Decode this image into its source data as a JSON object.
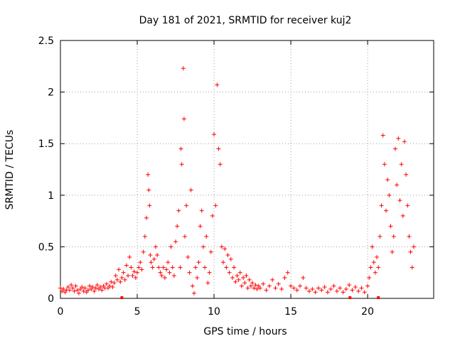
{
  "chart_data": {
    "type": "scatter",
    "title": "Day 181 of 2021, SRMTID for receiver kuj2",
    "xlabel": "GPS time / hours",
    "ylabel": "SRMTID / TECUs",
    "xlim": [
      0,
      24.3
    ],
    "ylim": [
      0,
      2.5
    ],
    "xticks": [
      0,
      5,
      10,
      15,
      20
    ],
    "yticks": [
      0,
      0.5,
      1,
      1.5,
      2,
      2.5
    ],
    "xtick_labels": [
      "0",
      "5",
      "10",
      "15",
      "20"
    ],
    "ytick_labels": [
      "0",
      "0.5",
      "1",
      "1.5",
      "2",
      "2.5"
    ],
    "grid": true,
    "marker": "+",
    "color": "#ff0000",
    "series": [
      {
        "name": "SRMTID",
        "points": [
          [
            0.0,
            0.1
          ],
          [
            0.1,
            0.07
          ],
          [
            0.2,
            0.09
          ],
          [
            0.3,
            0.06
          ],
          [
            0.4,
            0.08
          ],
          [
            0.5,
            0.11
          ],
          [
            0.6,
            0.08
          ],
          [
            0.7,
            0.13
          ],
          [
            0.8,
            0.1
          ],
          [
            0.9,
            0.07
          ],
          [
            1.0,
            0.12
          ],
          [
            1.1,
            0.08
          ],
          [
            1.2,
            0.05
          ],
          [
            1.3,
            0.09
          ],
          [
            1.4,
            0.11
          ],
          [
            1.5,
            0.07
          ],
          [
            1.6,
            0.1
          ],
          [
            1.7,
            0.06
          ],
          [
            1.8,
            0.08
          ],
          [
            1.9,
            0.12
          ],
          [
            2.0,
            0.09
          ],
          [
            2.1,
            0.11
          ],
          [
            2.2,
            0.07
          ],
          [
            2.3,
            0.1
          ],
          [
            2.4,
            0.13
          ],
          [
            2.5,
            0.09
          ],
          [
            2.6,
            0.11
          ],
          [
            2.7,
            0.08
          ],
          [
            2.8,
            0.12
          ],
          [
            2.9,
            0.1
          ],
          [
            3.0,
            0.14
          ],
          [
            3.1,
            0.1
          ],
          [
            3.2,
            0.12
          ],
          [
            3.3,
            0.16
          ],
          [
            3.4,
            0.11
          ],
          [
            3.5,
            0.15
          ],
          [
            3.6,
            0.22
          ],
          [
            3.7,
            0.18
          ],
          [
            3.8,
            0.28
          ],
          [
            3.9,
            0.16
          ],
          [
            4.0,
            0.2
          ],
          [
            4.1,
            0.25
          ],
          [
            4.2,
            0.18
          ],
          [
            4.3,
            0.32
          ],
          [
            4.4,
            0.22
          ],
          [
            4.5,
            0.4
          ],
          [
            4.6,
            0.3
          ],
          [
            4.7,
            0.22
          ],
          [
            4.8,
            0.26
          ],
          [
            4.9,
            0.2
          ],
          [
            5.0,
            0.25
          ],
          [
            5.1,
            0.3
          ],
          [
            5.2,
            0.35
          ],
          [
            5.3,
            0.28
          ],
          [
            5.4,
            0.45
          ],
          [
            5.5,
            0.6
          ],
          [
            5.6,
            0.78
          ],
          [
            5.7,
            1.2
          ],
          [
            5.75,
            1.05
          ],
          [
            5.8,
            0.9
          ],
          [
            5.85,
            0.42
          ],
          [
            5.9,
            0.35
          ],
          [
            6.0,
            0.3
          ],
          [
            6.1,
            0.38
          ],
          [
            6.2,
            0.5
          ],
          [
            6.3,
            0.42
          ],
          [
            6.4,
            0.3
          ],
          [
            6.5,
            0.25
          ],
          [
            6.6,
            0.22
          ],
          [
            6.7,
            0.3
          ],
          [
            6.8,
            0.2
          ],
          [
            6.9,
            0.28
          ],
          [
            7.0,
            0.35
          ],
          [
            7.1,
            0.25
          ],
          [
            7.2,
            0.5
          ],
          [
            7.3,
            0.3
          ],
          [
            7.4,
            0.22
          ],
          [
            7.5,
            0.55
          ],
          [
            7.6,
            0.7
          ],
          [
            7.7,
            0.85
          ],
          [
            7.8,
            0.3
          ],
          [
            7.85,
            1.45
          ],
          [
            7.9,
            1.3
          ],
          [
            8.0,
            2.23
          ],
          [
            8.05,
            1.74
          ],
          [
            8.1,
            0.6
          ],
          [
            8.2,
            0.9
          ],
          [
            8.3,
            0.4
          ],
          [
            8.4,
            0.25
          ],
          [
            8.5,
            1.05
          ],
          [
            8.6,
            0.12
          ],
          [
            8.7,
            0.05
          ],
          [
            8.8,
            0.3
          ],
          [
            8.9,
            0.2
          ],
          [
            9.0,
            0.35
          ],
          [
            9.1,
            0.7
          ],
          [
            9.2,
            0.85
          ],
          [
            9.3,
            0.5
          ],
          [
            9.4,
            0.3
          ],
          [
            9.5,
            0.6
          ],
          [
            9.6,
            0.15
          ],
          [
            9.7,
            0.25
          ],
          [
            9.8,
            0.45
          ],
          [
            9.9,
            0.8
          ],
          [
            10.0,
            1.59
          ],
          [
            10.1,
            0.9
          ],
          [
            10.2,
            2.07
          ],
          [
            10.3,
            1.45
          ],
          [
            10.4,
            1.3
          ],
          [
            10.5,
            0.5
          ],
          [
            10.6,
            0.35
          ],
          [
            10.7,
            0.48
          ],
          [
            10.8,
            0.3
          ],
          [
            10.9,
            0.42
          ],
          [
            11.0,
            0.25
          ],
          [
            11.1,
            0.38
          ],
          [
            11.2,
            0.2
          ],
          [
            11.3,
            0.3
          ],
          [
            11.4,
            0.16
          ],
          [
            11.5,
            0.22
          ],
          [
            11.6,
            0.18
          ],
          [
            11.7,
            0.25
          ],
          [
            11.8,
            0.12
          ],
          [
            11.9,
            0.2
          ],
          [
            12.0,
            0.15
          ],
          [
            12.1,
            0.22
          ],
          [
            12.2,
            0.1
          ],
          [
            12.3,
            0.18
          ],
          [
            12.4,
            0.12
          ],
          [
            12.5,
            0.15
          ],
          [
            12.6,
            0.1
          ],
          [
            12.7,
            0.13
          ],
          [
            12.8,
            0.09
          ],
          [
            12.9,
            0.12
          ],
          [
            13.0,
            0.1
          ],
          [
            13.2,
            0.14
          ],
          [
            13.4,
            0.08
          ],
          [
            13.6,
            0.12
          ],
          [
            13.8,
            0.18
          ],
          [
            14.0,
            0.1
          ],
          [
            14.2,
            0.14
          ],
          [
            14.4,
            0.09
          ],
          [
            14.6,
            0.2
          ],
          [
            14.8,
            0.25
          ],
          [
            15.0,
            0.12
          ],
          [
            15.2,
            0.1
          ],
          [
            15.4,
            0.08
          ],
          [
            15.6,
            0.12
          ],
          [
            15.8,
            0.2
          ],
          [
            16.0,
            0.1
          ],
          [
            16.2,
            0.07
          ],
          [
            16.4,
            0.09
          ],
          [
            16.6,
            0.06
          ],
          [
            16.8,
            0.1
          ],
          [
            17.0,
            0.08
          ],
          [
            17.2,
            0.11
          ],
          [
            17.4,
            0.06
          ],
          [
            17.6,
            0.09
          ],
          [
            17.8,
            0.12
          ],
          [
            18.0,
            0.07
          ],
          [
            18.2,
            0.1
          ],
          [
            18.4,
            0.06
          ],
          [
            18.6,
            0.09
          ],
          [
            18.8,
            0.13
          ],
          [
            19.0,
            0.08
          ],
          [
            19.2,
            0.11
          ],
          [
            19.4,
            0.07
          ],
          [
            19.6,
            0.1
          ],
          [
            19.8,
            0.06
          ],
          [
            20.0,
            0.12
          ],
          [
            20.1,
            0.2
          ],
          [
            20.2,
            0.3
          ],
          [
            20.3,
            0.5
          ],
          [
            20.4,
            0.35
          ],
          [
            20.5,
            0.25
          ],
          [
            20.6,
            0.4
          ],
          [
            20.7,
            0.3
          ],
          [
            20.8,
            0.6
          ],
          [
            20.9,
            0.9
          ],
          [
            21.0,
            1.58
          ],
          [
            21.1,
            1.3
          ],
          [
            21.2,
            0.85
          ],
          [
            21.3,
            1.15
          ],
          [
            21.4,
            1.0
          ],
          [
            21.5,
            0.7
          ],
          [
            21.6,
            0.45
          ],
          [
            21.7,
            0.6
          ],
          [
            21.8,
            1.45
          ],
          [
            21.9,
            1.1
          ],
          [
            22.0,
            1.55
          ],
          [
            22.1,
            0.95
          ],
          [
            22.2,
            1.3
          ],
          [
            22.3,
            0.8
          ],
          [
            22.4,
            1.52
          ],
          [
            22.5,
            1.2
          ],
          [
            22.6,
            0.9
          ],
          [
            22.7,
            0.6
          ],
          [
            22.8,
            0.45
          ],
          [
            22.9,
            0.3
          ],
          [
            23.0,
            0.5
          ]
        ]
      }
    ],
    "zero_markers_x": [
      4.0,
      18.85,
      20.7
    ]
  }
}
